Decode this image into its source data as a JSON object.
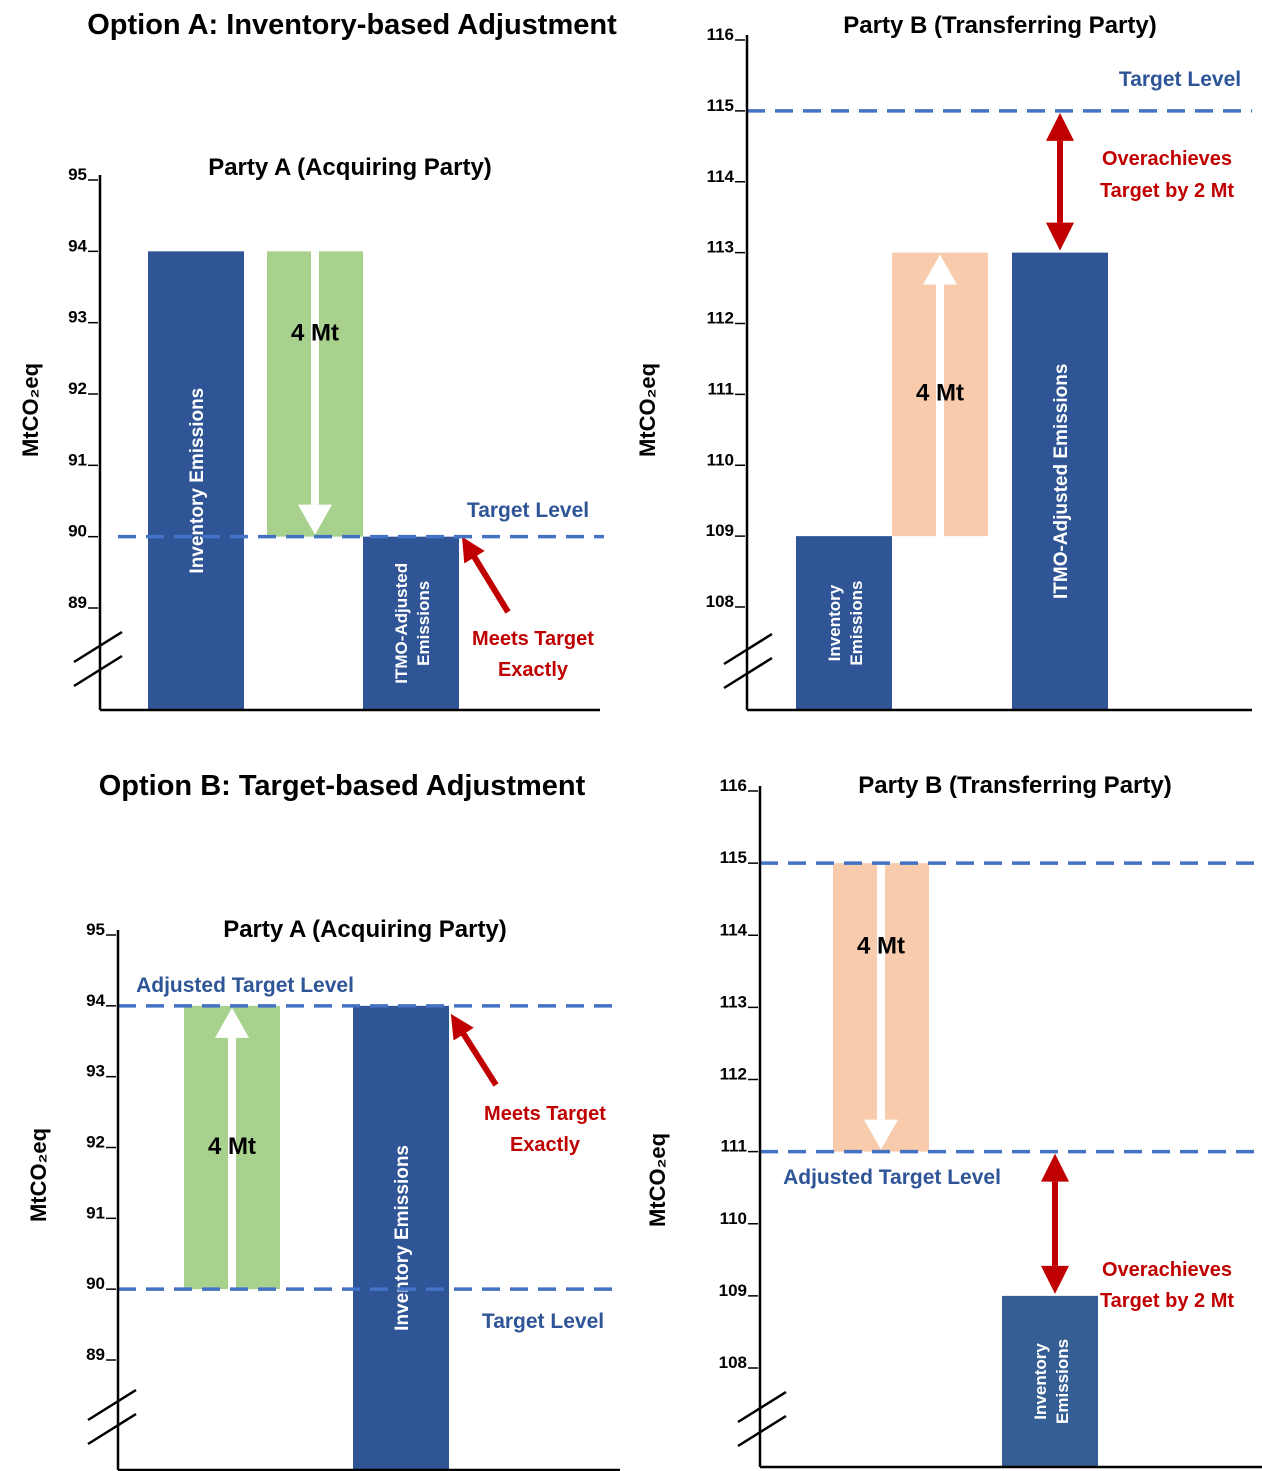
{
  "titles": {
    "option_a": "Option A: Inventory-based Adjustment",
    "option_b": "Option B: Target-based Adjustment"
  },
  "colors": {
    "navy_bar": "#2f5597",
    "dark_bar": "#355f94",
    "green": "#a9d18e",
    "peach": "#f8cbad",
    "dashed_line": "#4472c4",
    "label_blue": "#2e5597",
    "red": "#c00000"
  },
  "chart_data": [
    {
      "type": "bar",
      "title": "Party A (Acquiring Party)",
      "ylabel": "MtCO₂eq",
      "ylim": [
        88,
        95
      ],
      "yticks": [
        "89",
        "90",
        "91",
        "92",
        "93",
        "94",
        "95"
      ],
      "axis_break": true,
      "bars": [
        {
          "label": "Inventory Emissions",
          "from": 88,
          "to": 94,
          "color": "#2f5597"
        },
        {
          "label": "4 Mt",
          "from": 90,
          "to": 94,
          "color": "#a9d18e",
          "arrow": "down"
        },
        {
          "label": "ITMO-Adjusted Emissions",
          "from": 88,
          "to": 90,
          "color": "#2f5597"
        }
      ],
      "reference_lines": [
        {
          "label": "Target Level",
          "value": 90
        }
      ],
      "annotation": "Meets Target Exactly"
    },
    {
      "type": "bar",
      "title": "Party B (Transferring Party)",
      "ylabel": "MtCO₂eq",
      "ylim": [
        107,
        116
      ],
      "yticks": [
        "108",
        "109",
        "110",
        "111",
        "112",
        "113",
        "114",
        "115",
        "116"
      ],
      "axis_break": true,
      "bars": [
        {
          "label": "Inventory Emissions",
          "from": 107,
          "to": 109,
          "color": "#2f5597"
        },
        {
          "label": "4 Mt",
          "from": 109,
          "to": 113,
          "color": "#f8cbad",
          "arrow": "up"
        },
        {
          "label": "ITMO-Adjusted Emissions",
          "from": 107,
          "to": 113,
          "color": "#2f5597"
        }
      ],
      "reference_lines": [
        {
          "label": "Target Level",
          "value": 115
        }
      ],
      "annotation": "Overachieves Target by 2 Mt"
    },
    {
      "type": "bar",
      "title": "Party A (Acquiring Party)",
      "ylabel": "MtCO₂eq",
      "ylim": [
        88,
        95
      ],
      "yticks": [
        "89",
        "90",
        "91",
        "92",
        "93",
        "94",
        "95"
      ],
      "axis_break": true,
      "bars": [
        {
          "label": "4 Mt",
          "from": 90,
          "to": 94,
          "color": "#a9d18e",
          "arrow": "up"
        },
        {
          "label": "Inventory Emissions",
          "from": 88,
          "to": 94,
          "color": "#2f5597"
        }
      ],
      "reference_lines": [
        {
          "label": "Adjusted Target Level",
          "value": 94
        },
        {
          "label": "Target Level",
          "value": 90
        }
      ],
      "annotation": "Meets Target Exactly"
    },
    {
      "type": "bar",
      "title": "Party B (Transferring Party)",
      "ylabel": "MtCO₂eq",
      "ylim": [
        107,
        116
      ],
      "yticks": [
        "108",
        "109",
        "110",
        "111",
        "112",
        "113",
        "114",
        "115",
        "116"
      ],
      "axis_break": true,
      "bars": [
        {
          "label": "4 Mt",
          "from": 111,
          "to": 115,
          "color": "#f8cbad",
          "arrow": "down"
        },
        {
          "label": "Inventory Emissions",
          "from": 107,
          "to": 109,
          "color": "#355f94"
        }
      ],
      "reference_lines": [
        {
          "label": "",
          "value": 115
        },
        {
          "label": "Adjusted Target Level",
          "value": 111
        }
      ],
      "annotation": "Overachieves Target by 2 Mt"
    }
  ]
}
